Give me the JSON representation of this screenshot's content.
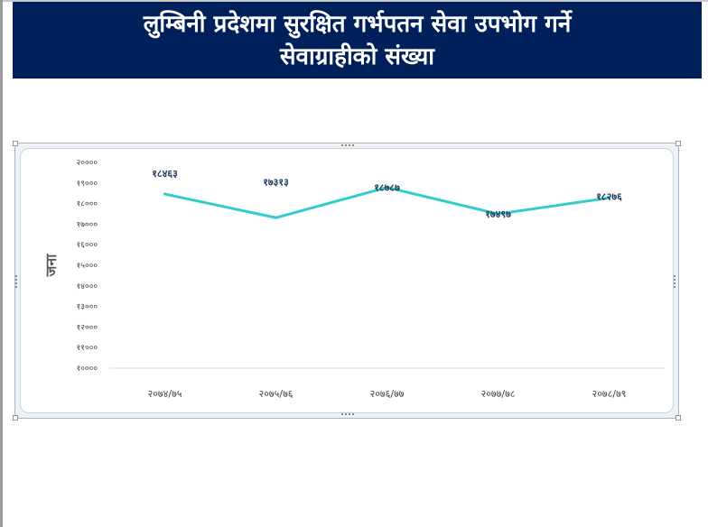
{
  "title": {
    "line1": "लुम्बिनी प्रदेशमा सुरक्षित गर्भपतन सेवा उपभोग गर्ने",
    "line2": "सेवाग्राहीको संख्या"
  },
  "chart_data": {
    "type": "line",
    "title": "लुम्बिनी प्रदेशमा सुरक्षित गर्भपतन सेवा उपभोग गर्ने सेवाग्राहीको संख्या",
    "ylabel": "जना",
    "xlabel": "",
    "categories": [
      "२०७४/७५",
      "२०७५/७६",
      "२०७६/७७",
      "२०७७/७८",
      "२०७८/७९"
    ],
    "series": [
      {
        "values": [
          18463,
          17313,
          18787,
          17497,
          18276
        ]
      }
    ],
    "data_labels": [
      "१८४६३",
      "१७३१३",
      "१८७८७",
      "१७४९७",
      "१८२७६"
    ],
    "ylim": [
      10000,
      20000
    ],
    "yticks": [
      10000,
      11000,
      12000,
      13000,
      14000,
      15000,
      16000,
      17000,
      18000,
      19000,
      20000
    ],
    "ytick_labels": [
      "१००००",
      "११०००",
      "१२०००",
      "१३०००",
      "१४०००",
      "१५०००",
      "१६०००",
      "१७०००",
      "१८०००",
      "१९०००",
      "२००००"
    ],
    "line_color": "#33cccc",
    "label_color": "#1f3a5f",
    "grid": false,
    "legend": "none"
  }
}
